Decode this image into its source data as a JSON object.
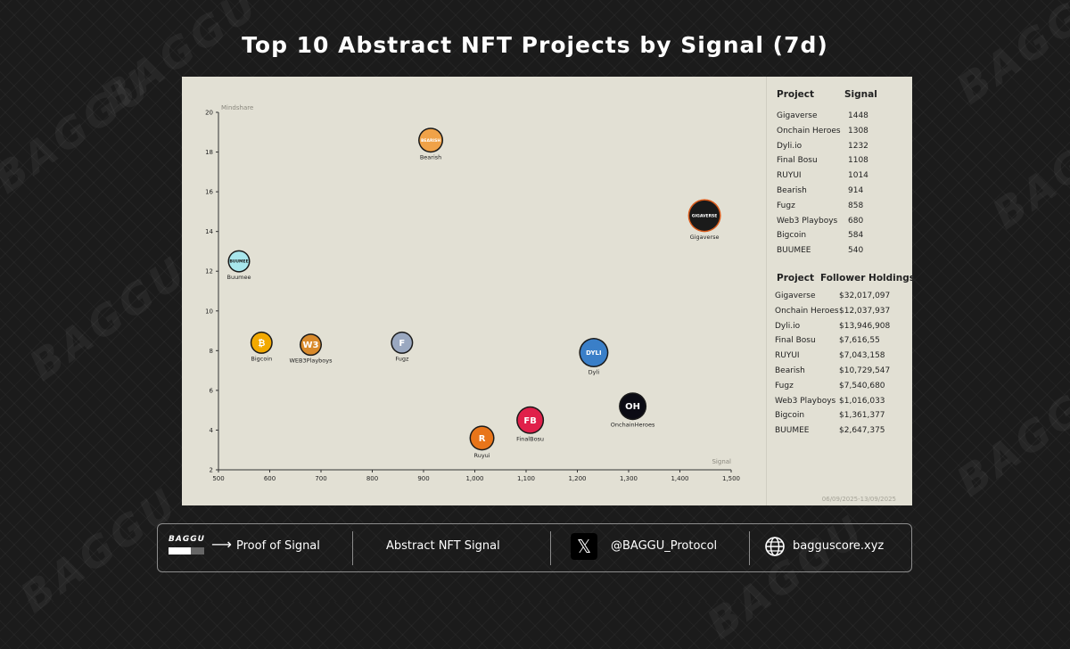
{
  "header": {
    "title": "Top 10 Abstract NFT Projects by Signal (7d)"
  },
  "watermark": "BAGGU",
  "chart_data": {
    "type": "scatter",
    "title": "Top 10 Abstract NFT Projects by Signal (7d)",
    "xlabel": "Signal",
    "ylabel": "Mindshare",
    "xlim": [
      500,
      1500
    ],
    "ylim": [
      2,
      20
    ],
    "xticks": [
      500,
      600,
      700,
      800,
      900,
      1000,
      1100,
      1200,
      1300,
      1400,
      1500
    ],
    "xtick_labels": [
      "500",
      "600",
      "700",
      "800",
      "900",
      "1,000",
      "1,100",
      "1,200",
      "1,300",
      "1,400",
      "1,500"
    ],
    "yticks": [
      2,
      4,
      6,
      8,
      10,
      12,
      14,
      16,
      18,
      20
    ],
    "points": [
      {
        "label": "Gigaverse",
        "x": 1448,
        "y": 14.8,
        "color": "#1a1a1a",
        "ring": "#d95a1a",
        "glyph": "GIGAVERSE"
      },
      {
        "label": "OnchainHeroes",
        "x": 1308,
        "y": 5.2,
        "color": "#0b0b14",
        "ring": "#1a1a1a",
        "glyph": "OH"
      },
      {
        "label": "Dyli",
        "x": 1232,
        "y": 7.9,
        "color": "#3a7fc8",
        "ring": "#1a1a1a",
        "glyph": "DYLI"
      },
      {
        "label": "FinalBosu",
        "x": 1108,
        "y": 4.5,
        "color": "#e0204a",
        "ring": "#1a1a1a",
        "glyph": "FB"
      },
      {
        "label": "Ruyui",
        "x": 1014,
        "y": 3.6,
        "color": "#e8751a",
        "ring": "#1a1a1a",
        "glyph": "R"
      },
      {
        "label": "Bearish",
        "x": 914,
        "y": 18.6,
        "color": "#f0a248",
        "ring": "#1a1a1a",
        "glyph": "BEARISH"
      },
      {
        "label": "Fugz",
        "x": 858,
        "y": 8.4,
        "color": "#9aa8c0",
        "ring": "#1a1a1a",
        "glyph": "F"
      },
      {
        "label": "WEB3Playboys",
        "x": 680,
        "y": 8.3,
        "color": "#d98a2b",
        "ring": "#1a1a1a",
        "glyph": "W3"
      },
      {
        "label": "Bigcoin",
        "x": 584,
        "y": 8.4,
        "color": "#f2a900",
        "ring": "#1a1a1a",
        "glyph": "₿"
      },
      {
        "label": "Buumee",
        "x": 540,
        "y": 12.5,
        "color": "#a8e6ec",
        "ring": "#1a1a1a",
        "glyph": "BUUMEE"
      }
    ]
  },
  "signal_table": {
    "headers": [
      "Project",
      "Signal"
    ],
    "rows": [
      [
        "Gigaverse",
        "1448"
      ],
      [
        "Onchain Heroes",
        "1308"
      ],
      [
        "Dyli.io",
        "1232"
      ],
      [
        "Final Bosu",
        "1108"
      ],
      [
        "RUYUI",
        "1014"
      ],
      [
        "Bearish",
        "914"
      ],
      [
        "Fugz",
        "858"
      ],
      [
        "Web3 Playboys",
        "680"
      ],
      [
        "Bigcoin",
        "584"
      ],
      [
        "BUUMEE",
        "540"
      ]
    ]
  },
  "holdings_table": {
    "headers": [
      "Project",
      "Follower Holdings"
    ],
    "rows": [
      [
        "Gigaverse",
        "$32,017,097"
      ],
      [
        "Onchain Heroes",
        "$12,037,937"
      ],
      [
        "Dyli.io",
        "$13,946,908"
      ],
      [
        "Final Bosu",
        "$7,616,55"
      ],
      [
        "RUYUI",
        "$7,043,158"
      ],
      [
        "Bearish",
        "$10,729,547"
      ],
      [
        "Fugz",
        "$7,540,680"
      ],
      [
        "Web3 Playboys",
        "$1,016,033"
      ],
      [
        "Bigcoin",
        "$1,361,377"
      ],
      [
        "BUUMEE",
        "$2,647,375"
      ]
    ]
  },
  "date_range": "06/09/2025-13/09/2025",
  "footer": {
    "logo_text": "BAGGU",
    "arrow": "⟶",
    "tagline": "Proof of Signal",
    "section": "Abstract NFT Signal",
    "x_glyph": "𝕏",
    "handle": "@BAGGU_Protocol",
    "website": "bagguscore.xyz"
  }
}
